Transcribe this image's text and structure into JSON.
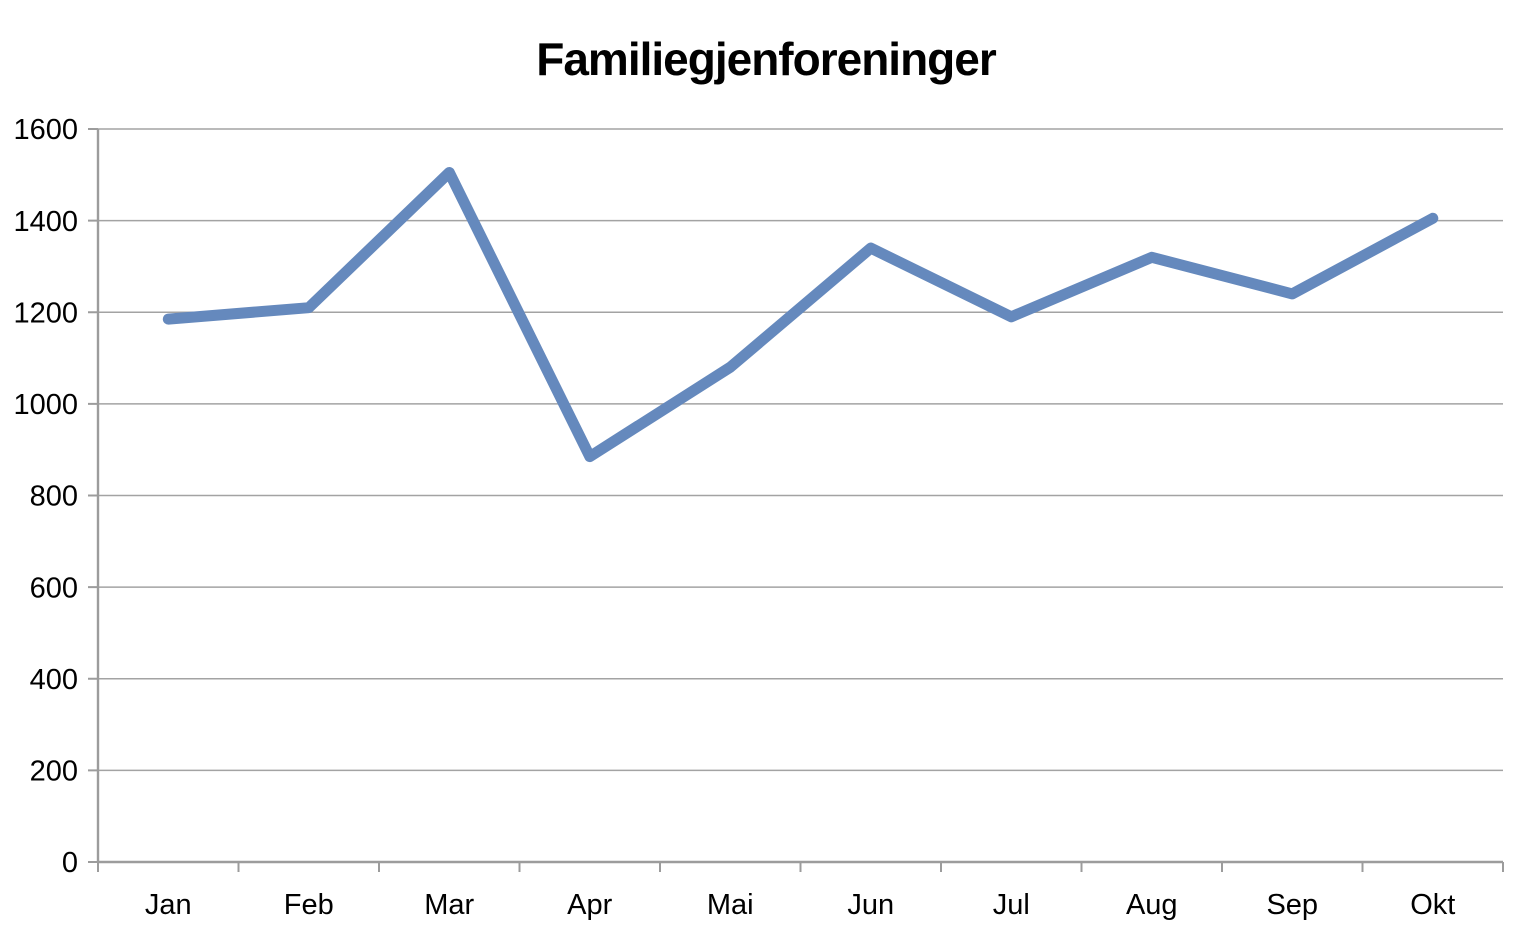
{
  "chart_data": {
    "type": "line",
    "title": "Familiegjenforeninger",
    "categories": [
      "Jan",
      "Feb",
      "Mar",
      "Apr",
      "Mai",
      "Jun",
      "Jul",
      "Aug",
      "Sep",
      "Okt"
    ],
    "series": [
      {
        "name": "Familiegjenforeninger",
        "values": [
          1185,
          1210,
          1505,
          885,
          1080,
          1340,
          1190,
          1320,
          1240,
          1405
        ]
      }
    ],
    "xlabel": "",
    "ylabel": "",
    "ylim": [
      0,
      1600
    ],
    "ytick_step": 200,
    "y_ticks": [
      0,
      200,
      400,
      600,
      800,
      1000,
      1200,
      1400,
      1600
    ],
    "grid": "horizontal",
    "legend": "none",
    "colors": {
      "line": "#6589BD",
      "gridline": "#A3A3A3",
      "axis": "#9C9C9C",
      "text": "#000000",
      "background": "#FFFFFF"
    }
  }
}
